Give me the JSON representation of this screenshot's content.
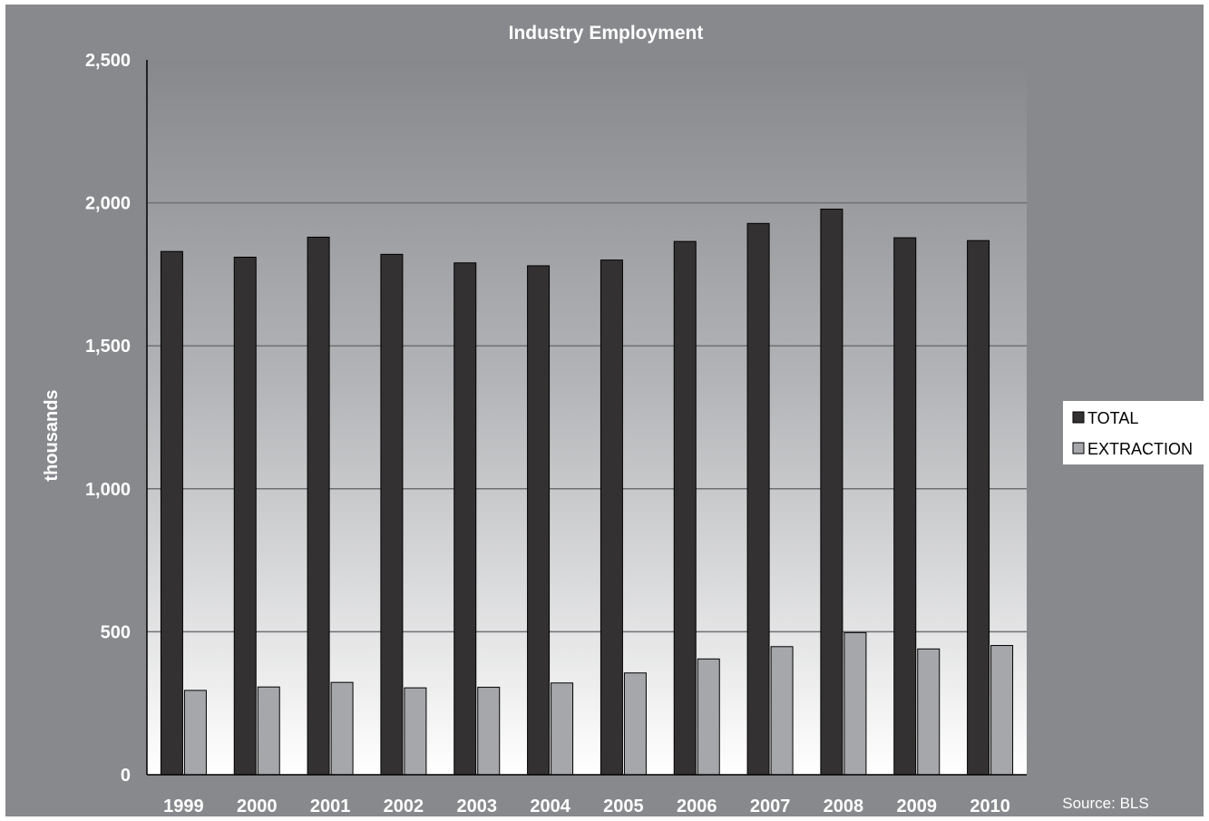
{
  "chart_data": {
    "type": "bar",
    "title": "Industry Employment",
    "xlabel": "",
    "ylabel": "thousands",
    "categories": [
      "1999",
      "2000",
      "2001",
      "2002",
      "2003",
      "2004",
      "2005",
      "2006",
      "2007",
      "2008",
      "2009",
      "2010"
    ],
    "series": [
      {
        "name": "TOTAL",
        "color": "#333132",
        "values": [
          1830,
          1810,
          1880,
          1820,
          1790,
          1780,
          1800,
          1865,
          1928,
          1978,
          1878,
          1868
        ]
      },
      {
        "name": "EXTRACTION",
        "color": "#a6a7ab",
        "values": [
          295,
          307,
          323,
          304,
          306,
          321,
          356,
          405,
          448,
          497,
          440,
          452
        ]
      }
    ],
    "ylim": [
      0,
      2500
    ],
    "yticks": [
      "0",
      "500",
      "1,000",
      "1,500",
      "2,000",
      "2,500"
    ],
    "ytick_values": [
      0,
      500,
      1000,
      1500,
      2000,
      2500
    ],
    "grid": true,
    "legend_position": "right",
    "source": "Source: BLS",
    "colors": {
      "frame_background": "#88898c",
      "plot_gradient_top": "#87888b",
      "plot_gradient_bottom": "#ffffff",
      "gridline": "#6f7073",
      "axis": "#000000",
      "legend_background": "#ffffff"
    }
  }
}
